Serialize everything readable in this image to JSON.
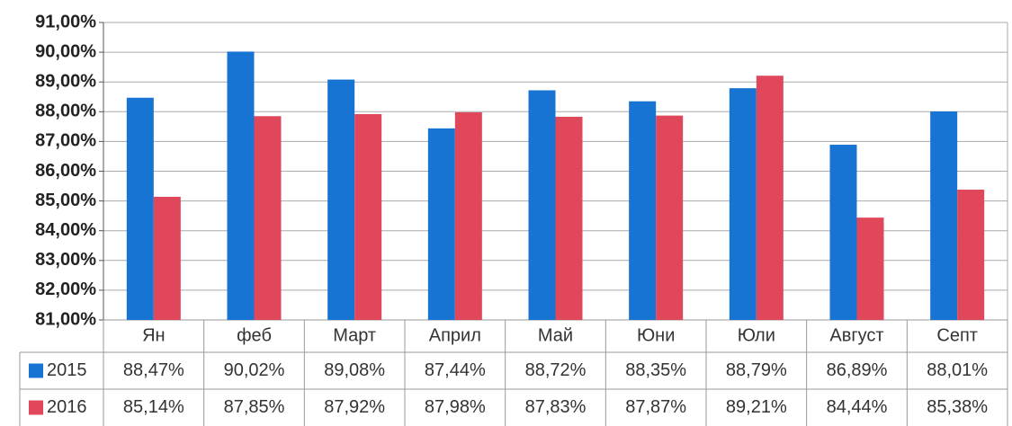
{
  "chart_data": {
    "type": "bar",
    "categories": [
      "Ян",
      "феб",
      "Март",
      "Април",
      "Май",
      "Юни",
      "Юли",
      "Август",
      "Септ"
    ],
    "series": [
      {
        "name": "2015",
        "color": "#1874d2",
        "values": [
          88.47,
          90.02,
          89.08,
          87.44,
          88.72,
          88.35,
          88.79,
          86.89,
          88.01
        ],
        "value_labels": [
          "88,47%",
          "90,02%",
          "89,08%",
          "87,44%",
          "88,72%",
          "88,35%",
          "88,79%",
          "86,89%",
          "88,01%"
        ]
      },
      {
        "name": "2016",
        "color": "#e0475b",
        "values": [
          85.14,
          87.85,
          87.92,
          87.98,
          87.83,
          87.87,
          89.21,
          84.44,
          85.38
        ],
        "value_labels": [
          "85,14%",
          "87,85%",
          "87,92%",
          "87,98%",
          "87,83%",
          "87,87%",
          "89,21%",
          "84,44%",
          "85,38%"
        ]
      }
    ],
    "ylim": [
      81,
      91
    ],
    "yticks": [
      {
        "value": 81,
        "label": "81,00%"
      },
      {
        "value": 82,
        "label": "82,00%"
      },
      {
        "value": 83,
        "label": "83,00%"
      },
      {
        "value": 84,
        "label": "84,00%"
      },
      {
        "value": 85,
        "label": "85,00%"
      },
      {
        "value": 86,
        "label": "86,00%"
      },
      {
        "value": 87,
        "label": "87,00%"
      },
      {
        "value": 88,
        "label": "88,00%"
      },
      {
        "value": 89,
        "label": "89,00%"
      },
      {
        "value": 90,
        "label": "90,00%"
      },
      {
        "value": 91,
        "label": "91,00%"
      }
    ],
    "grid": true
  }
}
